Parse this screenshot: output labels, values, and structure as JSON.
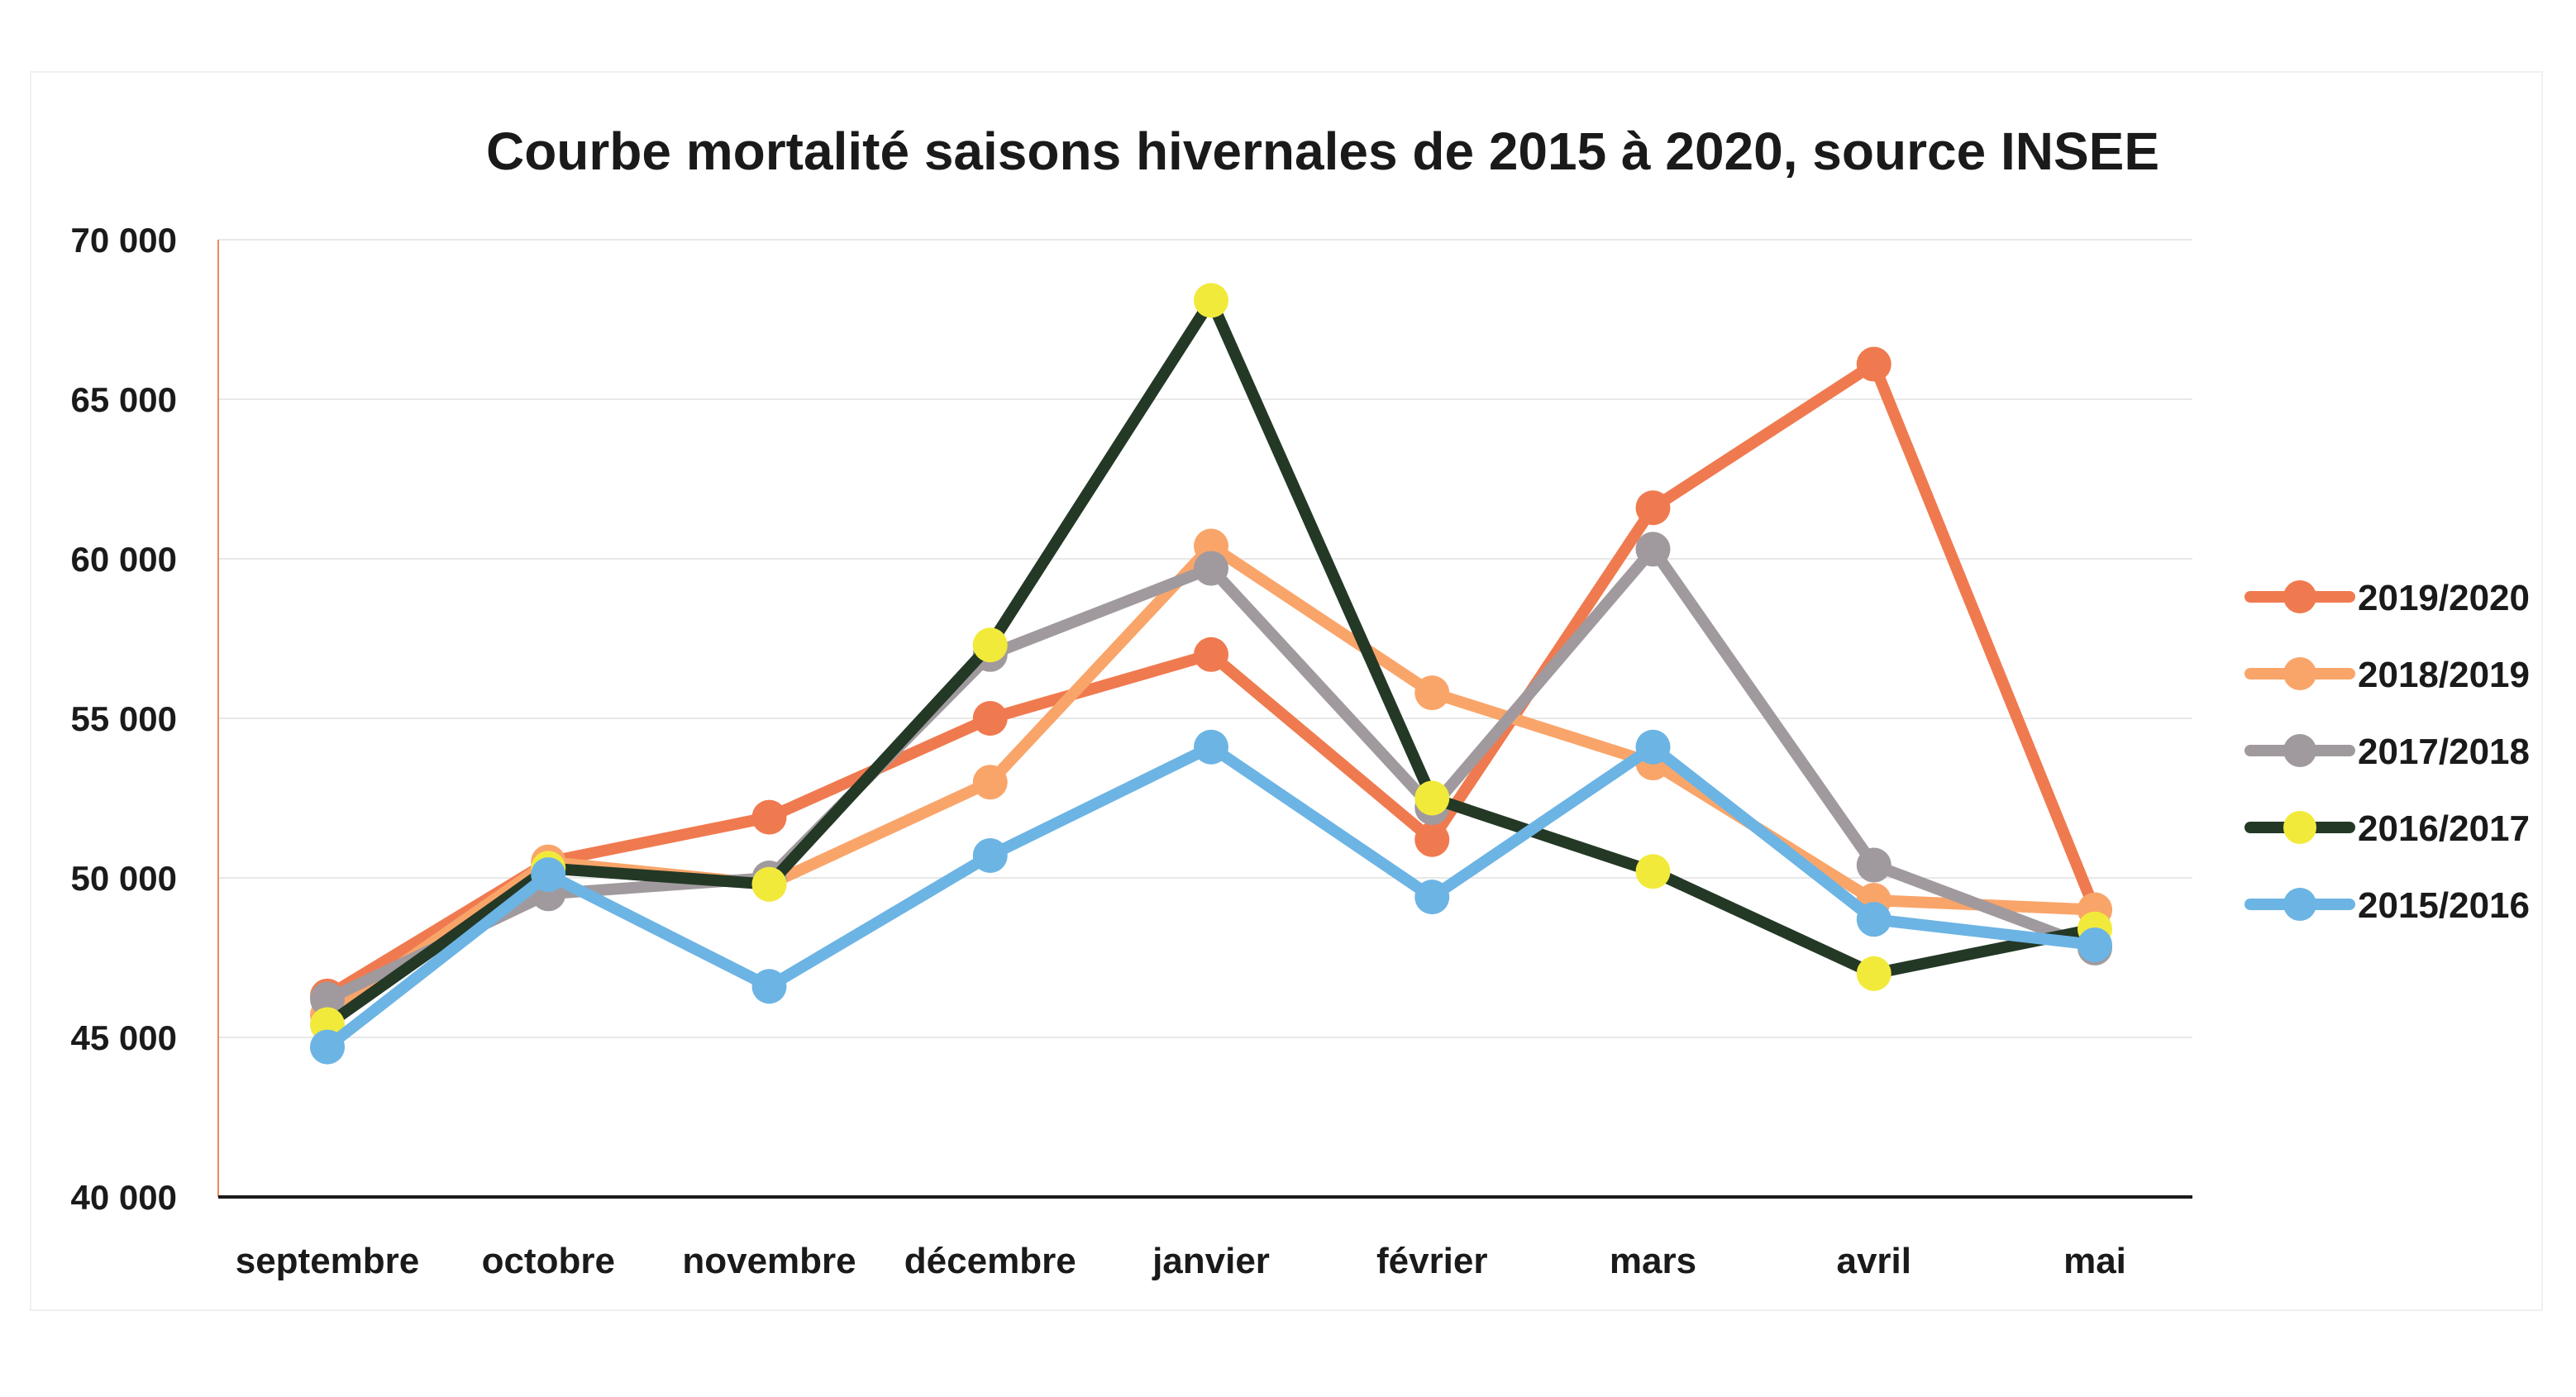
{
  "chart_data": {
    "type": "line",
    "title": "Courbe mortalité saisons hivernales de 2015 à 2020, source INSEE",
    "xlabel": "",
    "ylabel": "",
    "categories": [
      "septembre",
      "octobre",
      "novembre",
      "décembre",
      "janvier",
      "février",
      "mars",
      "avril",
      "mai"
    ],
    "ylim": [
      40000,
      70000
    ],
    "yticks": [
      40000,
      45000,
      50000,
      55000,
      60000,
      65000,
      70000
    ],
    "ytick_labels": [
      "40 000",
      "45 000",
      "50 000",
      "55 000",
      "60 000",
      "65 000",
      "70 000"
    ],
    "grid": true,
    "legend_position": "right",
    "series": [
      {
        "name": "2019/2020",
        "color": "#f07a4f",
        "marker_color": "#f07a4f",
        "values": [
          46300,
          50500,
          51900,
          55000,
          57000,
          51200,
          61600,
          66100,
          49000
        ]
      },
      {
        "name": "2018/2019",
        "color": "#f9a56a",
        "marker_color": "#f9a56a",
        "values": [
          45700,
          50500,
          49800,
          53000,
          60400,
          55800,
          53600,
          49300,
          49000
        ]
      },
      {
        "name": "2017/2018",
        "color": "#a09a9e",
        "marker_color": "#a09a9e",
        "values": [
          46200,
          49500,
          50000,
          57000,
          59700,
          52200,
          60300,
          50400,
          47800
        ]
      },
      {
        "name": "2016/2017",
        "color": "#243826",
        "marker_color": "#f2ea3b",
        "values": [
          45400,
          50300,
          49800,
          57300,
          68100,
          52500,
          50200,
          47000,
          48400
        ]
      },
      {
        "name": "2015/2016",
        "color": "#6cb4e4",
        "marker_color": "#6cb4e4",
        "values": [
          44700,
          50100,
          46600,
          50700,
          54100,
          49400,
          54100,
          48700,
          47900
        ]
      }
    ]
  }
}
